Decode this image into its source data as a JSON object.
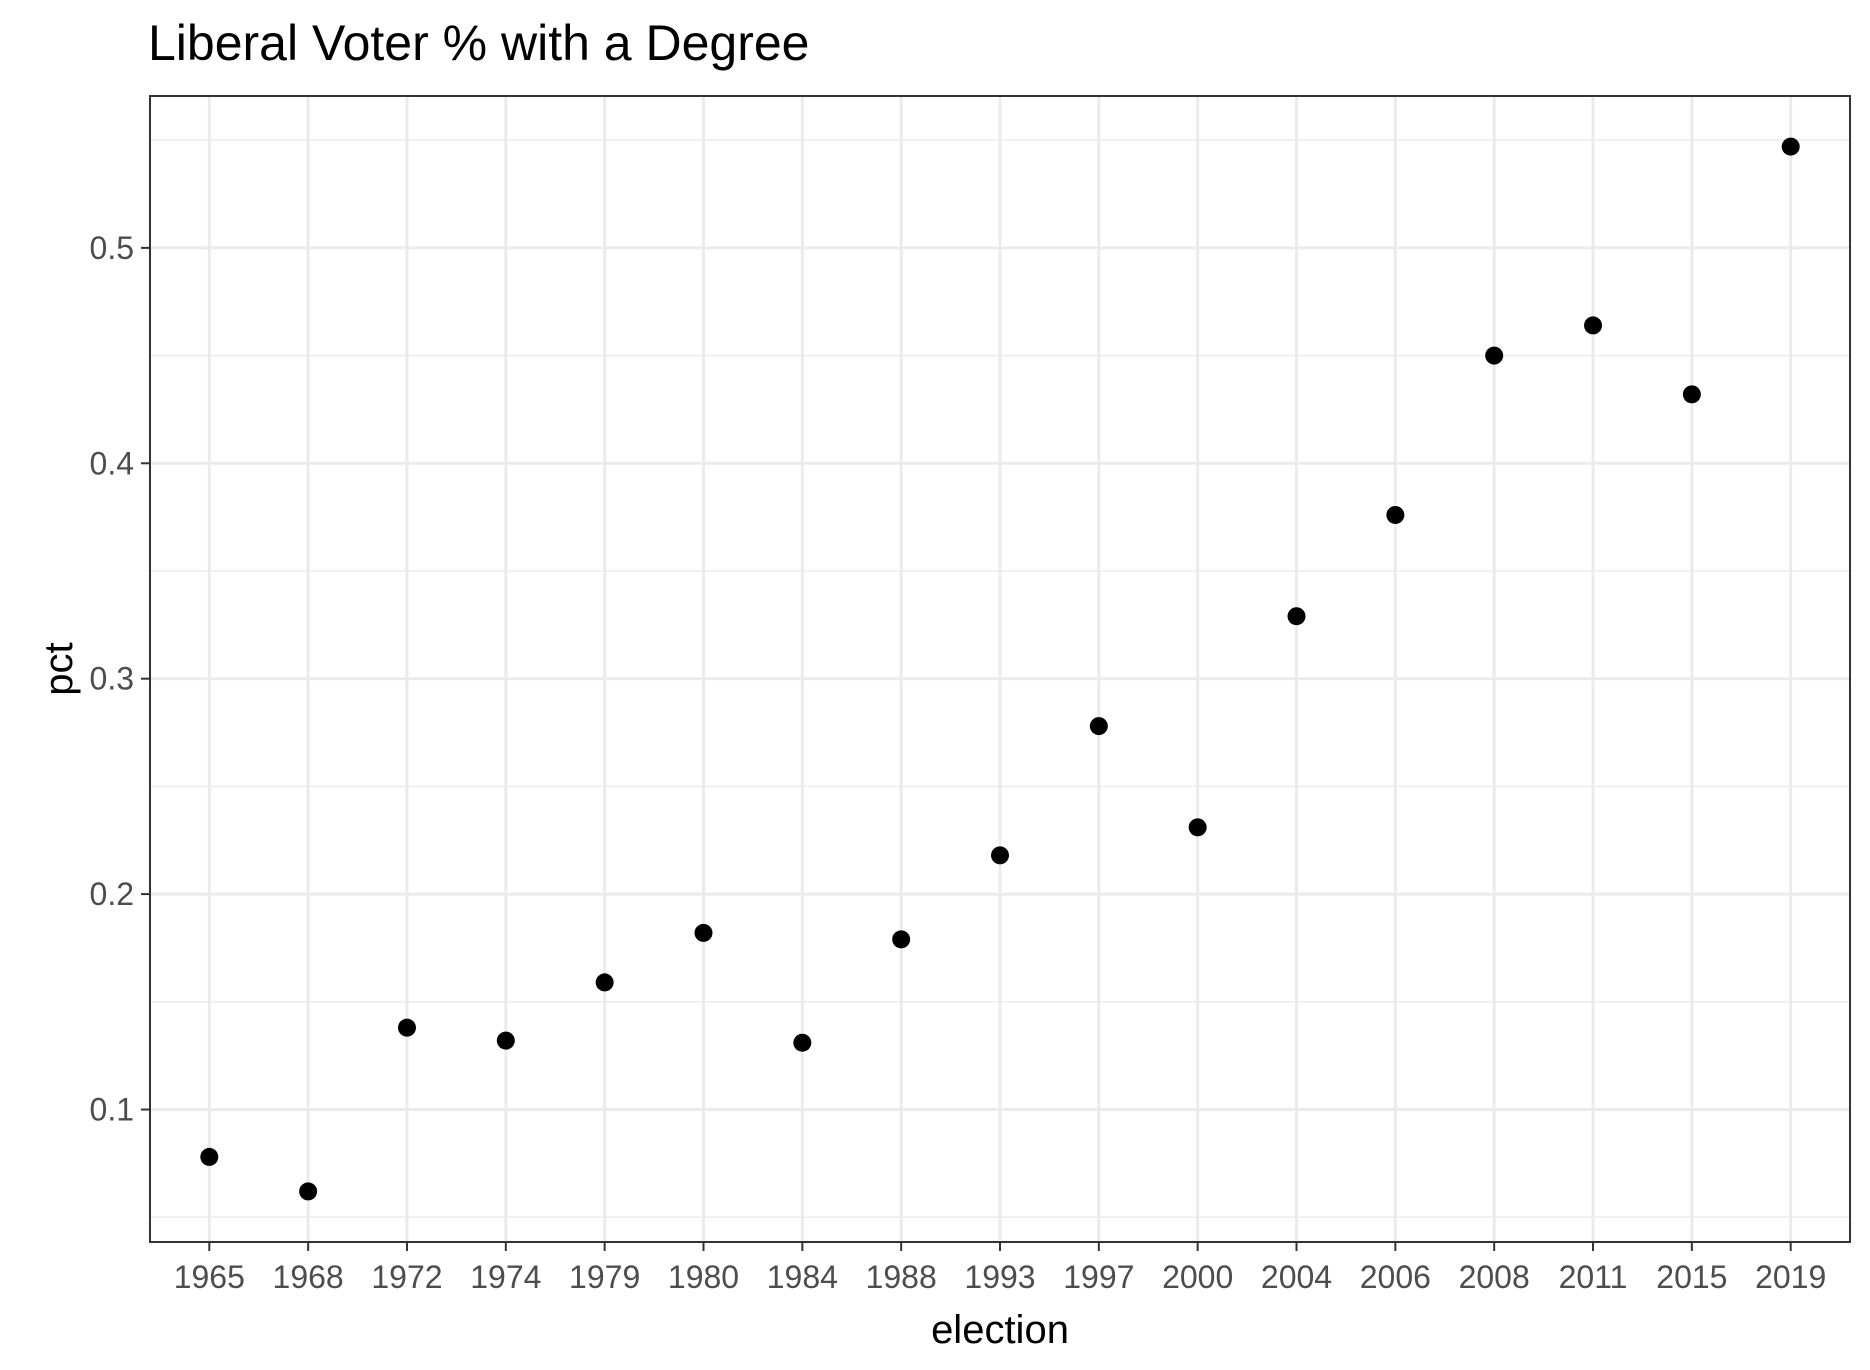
{
  "chart_data": {
    "type": "scatter",
    "title": "Liberal Voter % with a Degree",
    "xlabel": "election",
    "ylabel": "pct",
    "categories": [
      "1965",
      "1968",
      "1972",
      "1974",
      "1979",
      "1980",
      "1984",
      "1988",
      "1993",
      "1997",
      "2000",
      "2004",
      "2006",
      "2008",
      "2011",
      "2015",
      "2019"
    ],
    "series": [
      {
        "values": [
          0.078,
          0.062,
          0.138,
          0.132,
          0.159,
          0.182,
          0.131,
          0.179,
          0.218,
          0.278,
          0.231,
          0.329,
          0.376,
          0.45,
          0.464,
          0.432,
          0.547
        ],
        "color": "#000000"
      }
    ],
    "yticks": [
      "0.1",
      "0.2",
      "0.3",
      "0.4",
      "0.5"
    ],
    "ylim": [
      0.0385,
      0.5705
    ],
    "grid": true,
    "theme": "bw"
  }
}
